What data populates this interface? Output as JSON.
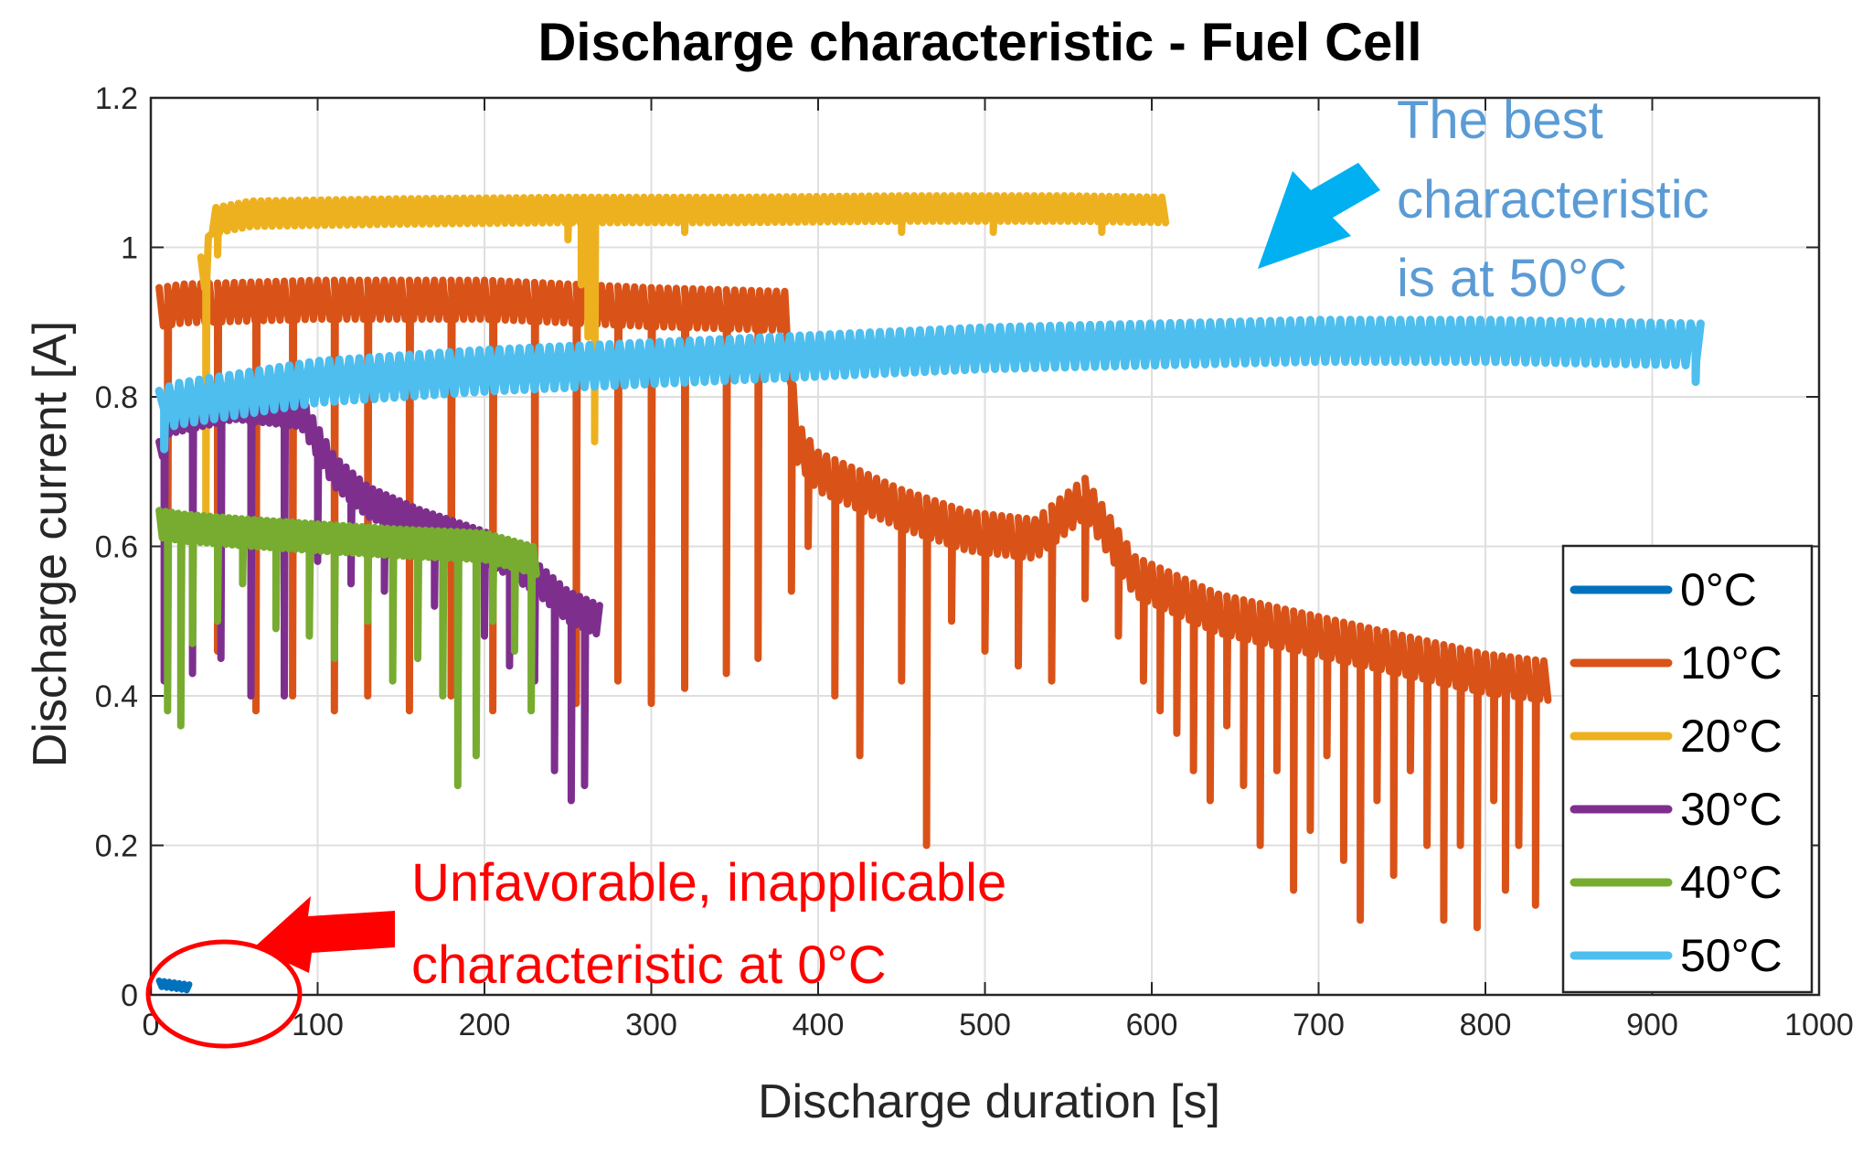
{
  "chart_data": {
    "type": "line",
    "title": "Discharge characteristic - Fuel Cell",
    "xlabel": "Discharge duration [s]",
    "ylabel": "Discharge current [A]",
    "xlim": [
      0,
      1000
    ],
    "ylim": [
      0,
      1.2
    ],
    "x_ticks": [
      0,
      100,
      200,
      300,
      400,
      500,
      600,
      700,
      800,
      900,
      1000
    ],
    "x_tick_labels": [
      "0",
      "100",
      "200",
      "300",
      "400",
      "500",
      "600",
      "700",
      "800",
      "900",
      "1000"
    ],
    "y_ticks": [
      0,
      0.2,
      0.4,
      0.6,
      0.8,
      1.0,
      1.2
    ],
    "y_tick_labels": [
      "0",
      "0.2",
      "0.4",
      "0.6",
      "0.8",
      "1",
      "1.2"
    ],
    "grid": true,
    "legend_position": "bottom-right",
    "series": [
      {
        "name": "0°C",
        "color": "#0072BD",
        "x_start": 5,
        "x_end": 23,
        "period": 3,
        "base": [
          [
            5,
            0.015
          ],
          [
            23,
            0.01
          ]
        ],
        "amp": 0.004,
        "dips": []
      },
      {
        "name": "10°C",
        "color": "#D95319",
        "x_start": 5,
        "x_end": 838,
        "period": 5,
        "base": [
          [
            5,
            0.92
          ],
          [
            20,
            0.925
          ],
          [
            100,
            0.93
          ],
          [
            200,
            0.93
          ],
          [
            300,
            0.92
          ],
          [
            380,
            0.915
          ],
          [
            387,
            0.74
          ],
          [
            400,
            0.7
          ],
          [
            450,
            0.65
          ],
          [
            490,
            0.62
          ],
          [
            530,
            0.61
          ],
          [
            560,
            0.665
          ],
          [
            590,
            0.56
          ],
          [
            640,
            0.51
          ],
          [
            700,
            0.48
          ],
          [
            760,
            0.45
          ],
          [
            800,
            0.43
          ],
          [
            838,
            0.42
          ]
        ],
        "amp": 0.026,
        "dips": [
          [
            10,
            0.44
          ],
          [
            40,
            0.46
          ],
          [
            63,
            0.38
          ],
          [
            85,
            0.4
          ],
          [
            110,
            0.38
          ],
          [
            130,
            0.4
          ],
          [
            155,
            0.38
          ],
          [
            180,
            0.4
          ],
          [
            205,
            0.38
          ],
          [
            230,
            0.42
          ],
          [
            255,
            0.39
          ],
          [
            280,
            0.42
          ],
          [
            300,
            0.39
          ],
          [
            320,
            0.41
          ],
          [
            345,
            0.43
          ],
          [
            364,
            0.45
          ],
          [
            384,
            0.54
          ],
          [
            394,
            0.6
          ],
          [
            410,
            0.4
          ],
          [
            425,
            0.32
          ],
          [
            450,
            0.42
          ],
          [
            465,
            0.2
          ],
          [
            480,
            0.5
          ],
          [
            500,
            0.46
          ],
          [
            520,
            0.44
          ],
          [
            540,
            0.42
          ],
          [
            560,
            0.53
          ],
          [
            580,
            0.48
          ],
          [
            595,
            0.42
          ],
          [
            605,
            0.38
          ],
          [
            615,
            0.35
          ],
          [
            625,
            0.3
          ],
          [
            635,
            0.26
          ],
          [
            645,
            0.36
          ],
          [
            655,
            0.28
          ],
          [
            665,
            0.2
          ],
          [
            675,
            0.3
          ],
          [
            685,
            0.14
          ],
          [
            695,
            0.22
          ],
          [
            705,
            0.32
          ],
          [
            715,
            0.18
          ],
          [
            725,
            0.1
          ],
          [
            735,
            0.26
          ],
          [
            745,
            0.16
          ],
          [
            755,
            0.3
          ],
          [
            765,
            0.2
          ],
          [
            775,
            0.1
          ],
          [
            785,
            0.2
          ],
          [
            795,
            0.09
          ],
          [
            805,
            0.26
          ],
          [
            812,
            0.14
          ],
          [
            820,
            0.2
          ],
          [
            830,
            0.12
          ]
        ]
      },
      {
        "name": "20°C",
        "color": "#EDB120",
        "x_start": 30,
        "x_end": 610,
        "period": 4.5,
        "base": [
          [
            30,
            0.97
          ],
          [
            33,
            0.96
          ],
          [
            36,
            1.035
          ],
          [
            60,
            1.045
          ],
          [
            150,
            1.048
          ],
          [
            250,
            1.05
          ],
          [
            350,
            1.05
          ],
          [
            450,
            1.052
          ],
          [
            550,
            1.052
          ],
          [
            610,
            1.05
          ]
        ],
        "amp": 0.017,
        "dips": [
          [
            33,
            0.64
          ],
          [
            40,
            0.99
          ],
          [
            250,
            1.01
          ],
          [
            258,
            0.95
          ],
          [
            262,
            0.88
          ],
          [
            266,
            0.74
          ],
          [
            320,
            1.02
          ],
          [
            450,
            1.02
          ],
          [
            505,
            1.02
          ],
          [
            570,
            1.02
          ]
        ]
      },
      {
        "name": "30°C",
        "color": "#7E2F8E",
        "x_start": 5,
        "x_end": 270,
        "period": 4,
        "base": [
          [
            5,
            0.72
          ],
          [
            10,
            0.77
          ],
          [
            50,
            0.79
          ],
          [
            90,
            0.78
          ],
          [
            110,
            0.7
          ],
          [
            130,
            0.66
          ],
          [
            160,
            0.63
          ],
          [
            200,
            0.6
          ],
          [
            230,
            0.56
          ],
          [
            250,
            0.52
          ],
          [
            270,
            0.5
          ]
        ],
        "amp": 0.02,
        "dips": [
          [
            8,
            0.42
          ],
          [
            25,
            0.43
          ],
          [
            42,
            0.45
          ],
          [
            60,
            0.4
          ],
          [
            80,
            0.4
          ],
          [
            100,
            0.58
          ],
          [
            120,
            0.55
          ],
          [
            140,
            0.54
          ],
          [
            170,
            0.52
          ],
          [
            200,
            0.48
          ],
          [
            215,
            0.44
          ],
          [
            230,
            0.42
          ],
          [
            242,
            0.3
          ],
          [
            252,
            0.26
          ],
          [
            260,
            0.28
          ]
        ]
      },
      {
        "name": "40°C",
        "color": "#77AC30",
        "x_start": 5,
        "x_end": 232,
        "period": 3.8,
        "base": [
          [
            5,
            0.63
          ],
          [
            20,
            0.625
          ],
          [
            60,
            0.618
          ],
          [
            100,
            0.612
          ],
          [
            150,
            0.605
          ],
          [
            200,
            0.6
          ],
          [
            232,
            0.58
          ]
        ],
        "amp": 0.018,
        "dips": [
          [
            10,
            0.38
          ],
          [
            18,
            0.36
          ],
          [
            25,
            0.47
          ],
          [
            40,
            0.5
          ],
          [
            55,
            0.55
          ],
          [
            75,
            0.49
          ],
          [
            95,
            0.48
          ],
          [
            110,
            0.45
          ],
          [
            130,
            0.5
          ],
          [
            145,
            0.42
          ],
          [
            160,
            0.45
          ],
          [
            175,
            0.4
          ],
          [
            184,
            0.28
          ],
          [
            195,
            0.32
          ],
          [
            205,
            0.5
          ],
          [
            218,
            0.46
          ],
          [
            228,
            0.38
          ]
        ]
      },
      {
        "name": "50°C",
        "color": "#4DBEEE",
        "x_start": 5,
        "x_end": 930,
        "period": 6,
        "base": [
          [
            5,
            0.78
          ],
          [
            15,
            0.79
          ],
          [
            100,
            0.82
          ],
          [
            200,
            0.835
          ],
          [
            300,
            0.845
          ],
          [
            400,
            0.855
          ],
          [
            500,
            0.865
          ],
          [
            600,
            0.87
          ],
          [
            700,
            0.875
          ],
          [
            800,
            0.875
          ],
          [
            930,
            0.87
          ]
        ],
        "amp": 0.028,
        "dips": [
          [
            8,
            0.73
          ],
          [
            926,
            0.82
          ]
        ]
      }
    ],
    "annotations": [
      {
        "text_lines": [
          "The best",
          "characteristic",
          "is at 50°C"
        ],
        "color": "#5B9BD5",
        "arrow_color": "#00B0F0"
      },
      {
        "text_lines": [
          "Unfavorable, inapplicable",
          "characteristic at 0°C"
        ],
        "color": "#FF0000",
        "arrow_color": "#FF0000"
      }
    ]
  }
}
